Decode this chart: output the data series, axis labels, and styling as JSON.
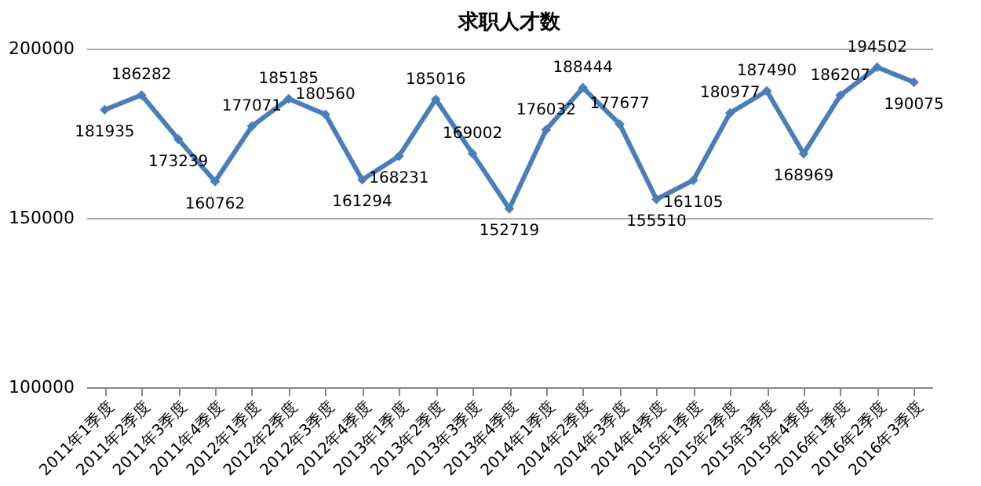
{
  "chart_data": {
    "type": "line",
    "title": "求职人才数",
    "categories": [
      "2011年1季度",
      "2011年2季度",
      "2011年3季度",
      "2011年4季度",
      "2012年1季度",
      "2012年2季度",
      "2012年3季度",
      "2012年4季度",
      "2013年1季度",
      "2013年2季度",
      "2013年3季度",
      "2013年4季度",
      "2014年1季度",
      "2014年2季度",
      "2014年3季度",
      "2014年4季度",
      "2015年1季度",
      "2015年2季度",
      "2015年3季度",
      "2015年4季度",
      "2016年1季度",
      "2016年2季度",
      "2016年3季度"
    ],
    "series": [
      {
        "color": "#4a7ebb",
        "values": [
          181935,
          186282,
          173239,
          160762,
          177071,
          185185,
          180560,
          161294,
          168231,
          185016,
          169002,
          152719,
          176032,
          188444,
          177677,
          155510,
          161105,
          180977,
          187490,
          168969,
          186207,
          194502,
          190075
        ]
      }
    ],
    "ylim": [
      100000,
      200000
    ],
    "yticks": [
      100000,
      150000,
      200000
    ],
    "grid": "y",
    "marker": "diamond",
    "line_style": "solid",
    "data_labels": true
  }
}
